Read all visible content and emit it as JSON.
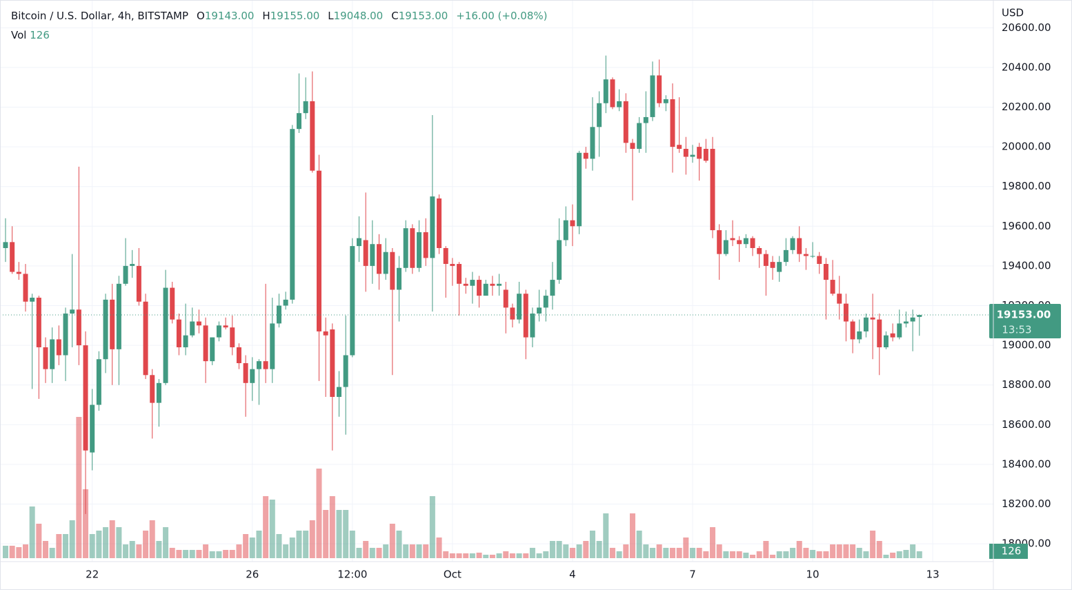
{
  "chart_data": {
    "type": "candlestick",
    "legend": {
      "symbol": "Bitcoin / U.S. Dollar, 4h, BITSTAMP",
      "ohlc": [
        {
          "key": "O",
          "value": "19143.00"
        },
        {
          "key": "H",
          "value": "19155.00"
        },
        {
          "key": "L",
          "value": "19048.00"
        },
        {
          "key": "C",
          "value": "19153.00"
        }
      ],
      "change": "+16.00 (+0.08%)",
      "volume_key": "Vol",
      "volume_value": "126"
    },
    "currency": "USD",
    "countdown": "13:53",
    "up_color": "#429a82",
    "down_color": "#e0474c",
    "grid": true,
    "ylim": [
      17910,
      20740
    ],
    "yticks": [
      {
        "value": 18000,
        "label": "18000.00"
      },
      {
        "value": 18200,
        "label": "18200.00"
      },
      {
        "value": 18400,
        "label": "18400.00"
      },
      {
        "value": 18600,
        "label": "18600.00"
      },
      {
        "value": 18800,
        "label": "18800.00"
      },
      {
        "value": 19000,
        "label": "19000.00"
      },
      {
        "value": 19200,
        "label": "19200.00"
      },
      {
        "value": 19400,
        "label": "19400.00"
      },
      {
        "value": 19600,
        "label": "19600.00"
      },
      {
        "value": 19800,
        "label": "19800.00"
      },
      {
        "value": 20000,
        "label": "20000.00"
      },
      {
        "value": 20200,
        "label": "20200.00"
      },
      {
        "value": 20400,
        "label": "20400.00"
      },
      {
        "value": 20600,
        "label": "20600.00"
      }
    ],
    "xticks": [
      {
        "value": 13,
        "label": "22"
      },
      {
        "value": 37,
        "label": "26"
      },
      {
        "value": 52,
        "label": "12:00"
      },
      {
        "value": 67,
        "label": "Oct"
      },
      {
        "value": 85,
        "label": "4"
      },
      {
        "value": 103,
        "label": "7"
      },
      {
        "value": 121,
        "label": "10"
      },
      {
        "value": 139,
        "label": "13"
      }
    ],
    "open": [
      19490,
      19520,
      19370,
      19360,
      19220,
      19240,
      18990,
      18880,
      19030,
      18950,
      19160,
      19180,
      19000,
      18460,
      18700,
      18930,
      19230,
      18980,
      19310,
      19400,
      19400,
      19220,
      18850,
      18710,
      18810,
      19290,
      19130,
      18990,
      19050,
      19120,
      19100,
      18920,
      19040,
      19100,
      19090,
      18990,
      18910,
      18810,
      18880,
      18920,
      18880,
      19110,
      19200,
      19230,
      20090,
      20170,
      20230,
      19880,
      19070,
      19080,
      18740,
      18790,
      18950,
      19500,
      19530,
      19400,
      19510,
      19360,
      19470,
      19280,
      19390,
      19590,
      19390,
      19570,
      19440,
      19740,
      19490,
      19410,
      19410,
      19310,
      19300,
      19330,
      19250,
      19310,
      19300,
      19280,
      19190,
      19130,
      19260,
      19040,
      19160,
      19190,
      19250,
      19330,
      19530,
      19630,
      19600,
      19970,
      19940,
      20100,
      20220,
      20340,
      20200,
      20230,
      20020,
      19990,
      20120,
      20150,
      20360,
      20220,
      20240,
      20010,
      19990,
      19950,
      20000,
      19990,
      19990,
      19580,
      19460,
      19540,
      19530,
      19510,
      19540,
      19490,
      19460,
      19420,
      19370,
      19420,
      19480,
      19540,
      19460,
      19450,
      19450,
      19410,
      19330,
      19260,
      19210,
      19120,
      19030,
      19070,
      19140,
      19130,
      18990,
      19060,
      19040,
      19110,
      19120,
      19143
    ],
    "high": [
      19640,
      19600,
      19420,
      19410,
      19260,
      19250,
      19040,
      19090,
      19100,
      19190,
      19460,
      19900,
      19070,
      18780,
      18970,
      19260,
      19310,
      19350,
      19540,
      19480,
      19490,
      19260,
      18880,
      18830,
      19380,
      19320,
      19160,
      19210,
      19190,
      19180,
      19140,
      19040,
      19120,
      19140,
      19150,
      19010,
      18950,
      18940,
      18930,
      19310,
      19240,
      19260,
      19270,
      20110,
      20370,
      20350,
      20380,
      19960,
      19140,
      19110,
      18870,
      19150,
      19540,
      19650,
      19770,
      19630,
      19560,
      19540,
      19490,
      19450,
      19630,
      19610,
      19630,
      19640,
      20160,
      19760,
      19500,
      19440,
      19420,
      19340,
      19370,
      19350,
      19330,
      19350,
      19360,
      19320,
      19210,
      19320,
      19280,
      19190,
      19280,
      19280,
      19420,
      19640,
      19700,
      19710,
      19980,
      20000,
      20250,
      20280,
      20460,
      20350,
      20290,
      20270,
      20040,
      20150,
      20280,
      20430,
      20440,
      20260,
      20320,
      20250,
      20050,
      20010,
      20020,
      20040,
      20050,
      19610,
      19580,
      19630,
      19550,
      19560,
      19550,
      19500,
      19480,
      19450,
      19450,
      19540,
      19550,
      19600,
      19490,
      19520,
      19470,
      19440,
      19430,
      19350,
      19260,
      19130,
      19130,
      19160,
      19260,
      19160,
      19070,
      19110,
      19180,
      19170,
      19180,
      19155
    ],
    "low": [
      19420,
      19360,
      19330,
      19170,
      18780,
      18730,
      18810,
      18810,
      18900,
      18820,
      18990,
      18900,
      18150,
      18370,
      18670,
      18860,
      18800,
      18800,
      19300,
      19340,
      19200,
      18830,
      18530,
      18590,
      18800,
      19110,
      18950,
      18950,
      19040,
      19060,
      18810,
      18900,
      19020,
      19080,
      18950,
      18880,
      18640,
      18720,
      18700,
      18810,
      18810,
      19090,
      19180,
      19210,
      20070,
      20140,
      19870,
      18820,
      18740,
      18470,
      18640,
      18550,
      18940,
      19420,
      19270,
      19310,
      19280,
      19330,
      18850,
      19120,
      19370,
      19360,
      19370,
      19400,
      19170,
      19460,
      19240,
      19300,
      19150,
      19260,
      19210,
      19190,
      19250,
      19250,
      19250,
      19060,
      19090,
      19110,
      18930,
      18990,
      19120,
      19120,
      19180,
      19310,
      19500,
      19500,
      19560,
      19890,
      19880,
      19950,
      20170,
      20190,
      20180,
      19970,
      19730,
      19970,
      19970,
      20130,
      20200,
      20180,
      19870,
      19970,
      19860,
      19920,
      19830,
      19920,
      19540,
      19330,
      19450,
      19500,
      19420,
      19490,
      19450,
      19390,
      19250,
      19330,
      19320,
      19400,
      19460,
      19420,
      19380,
      19440,
      19360,
      19130,
      19250,
      19130,
      19020,
      18960,
      19010,
      19040,
      18930,
      18850,
      18980,
      19020,
      19030,
      19090,
      18970,
      19048
    ],
    "close": [
      19520,
      19370,
      19360,
      19220,
      19240,
      18990,
      18880,
      19030,
      18950,
      19160,
      19180,
      19000,
      18470,
      18700,
      18930,
      19230,
      18980,
      19310,
      19400,
      19410,
      19220,
      18850,
      18710,
      18810,
      19290,
      19130,
      18990,
      19050,
      19120,
      19100,
      18920,
      19040,
      19100,
      19090,
      18990,
      18910,
      18810,
      18880,
      18920,
      18880,
      19110,
      19200,
      19230,
      20090,
      20170,
      20230,
      19880,
      19070,
      19050,
      18740,
      18790,
      18950,
      19500,
      19540,
      19400,
      19510,
      19360,
      19470,
      19280,
      19390,
      19590,
      19390,
      19570,
      19440,
      19750,
      19490,
      19410,
      19400,
      19310,
      19300,
      19330,
      19250,
      19310,
      19300,
      19310,
      19190,
      19130,
      19260,
      19040,
      19160,
      19190,
      19250,
      19330,
      19530,
      19630,
      19600,
      19970,
      19940,
      20100,
      20220,
      20340,
      20200,
      20230,
      20020,
      19990,
      20120,
      20150,
      20360,
      20220,
      20240,
      20000,
      19990,
      19950,
      19960,
      19940,
      19930,
      19580,
      19460,
      19530,
      19530,
      19510,
      19540,
      19490,
      19460,
      19400,
      19390,
      19420,
      19480,
      19540,
      19460,
      19450,
      19450,
      19410,
      19330,
      19260,
      19210,
      19120,
      19030,
      19070,
      19140,
      19130,
      18990,
      19050,
      19040,
      19110,
      19120,
      19140,
      19153
    ],
    "volume": [
      227,
      227,
      202,
      252,
      945,
      630,
      315,
      189,
      441,
      441,
      693,
      2583,
      1260,
      441,
      504,
      567,
      693,
      567,
      252,
      315,
      252,
      504,
      693,
      315,
      567,
      189,
      151,
      151,
      151,
      151,
      252,
      126,
      126,
      151,
      151,
      252,
      441,
      378,
      504,
      1134,
      1071,
      441,
      252,
      378,
      504,
      504,
      693,
      1638,
      882,
      1134,
      882,
      882,
      504,
      189,
      315,
      189,
      189,
      252,
      630,
      504,
      252,
      252,
      252,
      252,
      1134,
      378,
      126,
      88,
      88,
      88,
      88,
      101,
      63,
      63,
      88,
      126,
      88,
      88,
      88,
      189,
      88,
      126,
      315,
      315,
      252,
      189,
      252,
      315,
      504,
      315,
      819,
      189,
      126,
      252,
      819,
      504,
      252,
      189,
      252,
      189,
      189,
      189,
      378,
      189,
      189,
      126,
      567,
      252,
      126,
      126,
      126,
      101,
      63,
      126,
      315,
      63,
      126,
      126,
      189,
      315,
      189,
      151,
      126,
      126,
      252,
      252,
      252,
      252,
      189,
      126,
      504,
      315,
      63,
      101,
      126,
      151,
      252,
      126
    ]
  }
}
